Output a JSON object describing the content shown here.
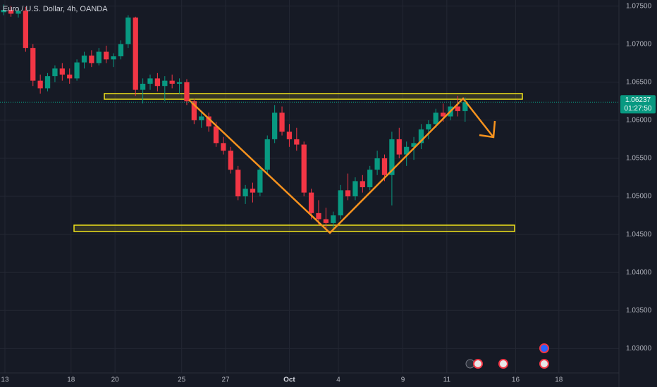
{
  "chart_data": {
    "type": "candlestick",
    "title": "Euro / U.S. Dollar, 4h, OANDA",
    "up_color": "#089981",
    "down_color": "#f23645",
    "last_price": {
      "value": 1.06237,
      "label": "1.06237"
    },
    "countdown": "01:27:50",
    "x": [
      0,
      1,
      2,
      3,
      4,
      5,
      6,
      7,
      8,
      9,
      10,
      11,
      12,
      13,
      14,
      15,
      16,
      17,
      18,
      19,
      20,
      21,
      22,
      23,
      24,
      25,
      26,
      27,
      28,
      29,
      30,
      31,
      32,
      33,
      34,
      35,
      36,
      37,
      38,
      39,
      40,
      41,
      42,
      43,
      44,
      45,
      46,
      47,
      48,
      49,
      50,
      51,
      52,
      53,
      54,
      55,
      56,
      57,
      58,
      59,
      60,
      61,
      62,
      63
    ],
    "candles": [
      [
        1.0742,
        1.0752,
        1.0738,
        1.0745
      ],
      [
        1.0745,
        1.075,
        1.0736,
        1.074
      ],
      [
        1.074,
        1.0748,
        1.0735,
        1.0744
      ],
      [
        1.0744,
        1.0749,
        1.069,
        1.0695
      ],
      [
        1.0695,
        1.07,
        1.0645,
        1.0652
      ],
      [
        1.0652,
        1.066,
        1.0635,
        1.0642
      ],
      [
        1.0642,
        1.0662,
        1.0638,
        1.0658
      ],
      [
        1.0658,
        1.0672,
        1.065,
        1.0668
      ],
      [
        1.0668,
        1.0675,
        1.0652,
        1.066
      ],
      [
        1.066,
        1.0668,
        1.0648,
        1.0655
      ],
      [
        1.0655,
        1.068,
        1.0652,
        1.0676
      ],
      [
        1.0676,
        1.069,
        1.0668,
        1.0685
      ],
      [
        1.0685,
        1.0692,
        1.067,
        1.0675
      ],
      [
        1.0675,
        1.0695,
        1.0672,
        1.069
      ],
      [
        1.069,
        1.0698,
        1.0675,
        1.068
      ],
      [
        1.068,
        1.0688,
        1.067,
        1.0684
      ],
      [
        1.0684,
        1.0705,
        1.068,
        1.07
      ],
      [
        1.07,
        1.0738,
        1.0695,
        1.0735
      ],
      [
        1.0735,
        1.0736,
        1.0632,
        1.064
      ],
      [
        1.064,
        1.0655,
        1.0622,
        1.0648
      ],
      [
        1.0648,
        1.066,
        1.064,
        1.0655
      ],
      [
        1.0655,
        1.0662,
        1.0638,
        1.0645
      ],
      [
        1.0645,
        1.0658,
        1.0625,
        1.0652
      ],
      [
        1.0652,
        1.066,
        1.0642,
        1.0648
      ],
      [
        1.0648,
        1.0655,
        1.0635,
        1.065
      ],
      [
        1.065,
        1.0654,
        1.062,
        1.0625
      ],
      [
        1.0625,
        1.0628,
        1.0595,
        1.06
      ],
      [
        1.06,
        1.0612,
        1.059,
        1.0605
      ],
      [
        1.0605,
        1.061,
        1.0585,
        1.0592
      ],
      [
        1.0592,
        1.0598,
        1.0565,
        1.057
      ],
      [
        1.057,
        1.0578,
        1.0555,
        1.056
      ],
      [
        1.056,
        1.0565,
        1.053,
        1.0535
      ],
      [
        1.0535,
        1.054,
        1.0495,
        1.05
      ],
      [
        1.05,
        1.0515,
        1.049,
        1.051
      ],
      [
        1.051,
        1.0518,
        1.0492,
        1.0505
      ],
      [
        1.0505,
        1.054,
        1.05,
        1.0535
      ],
      [
        1.0535,
        1.058,
        1.053,
        1.0575
      ],
      [
        1.0575,
        1.062,
        1.057,
        1.061
      ],
      [
        1.061,
        1.0618,
        1.058,
        1.0585
      ],
      [
        1.0585,
        1.0595,
        1.0565,
        1.0575
      ],
      [
        1.0575,
        1.059,
        1.056,
        1.0568
      ],
      [
        1.0568,
        1.0572,
        1.05,
        1.0505
      ],
      [
        1.0505,
        1.051,
        1.047,
        1.0478
      ],
      [
        1.0478,
        1.0495,
        1.0462,
        1.047
      ],
      [
        1.047,
        1.0485,
        1.0458,
        1.0465
      ],
      [
        1.0465,
        1.048,
        1.0455,
        1.0475
      ],
      [
        1.0475,
        1.0515,
        1.047,
        1.0508
      ],
      [
        1.0508,
        1.053,
        1.0495,
        1.05
      ],
      [
        1.05,
        1.0525,
        1.0495,
        1.052
      ],
      [
        1.052,
        1.0528,
        1.0505,
        1.0512
      ],
      [
        1.0512,
        1.054,
        1.0508,
        1.0535
      ],
      [
        1.0535,
        1.056,
        1.0528,
        1.055
      ],
      [
        1.055,
        1.0555,
        1.052,
        1.0528
      ],
      [
        1.0528,
        1.0585,
        1.0488,
        1.0575
      ],
      [
        1.0575,
        1.059,
        1.055,
        1.0555
      ],
      [
        1.0555,
        1.0572,
        1.054,
        1.0565
      ],
      [
        1.0565,
        1.0578,
        1.0548,
        1.057
      ],
      [
        1.057,
        1.0595,
        1.0562,
        1.0588
      ],
      [
        1.0588,
        1.06,
        1.0575,
        1.0595
      ],
      [
        1.0595,
        1.0615,
        1.059,
        1.061
      ],
      [
        1.061,
        1.0622,
        1.0598,
        1.0605
      ],
      [
        1.0605,
        1.0625,
        1.06,
        1.0618
      ],
      [
        1.0618,
        1.0632,
        1.0605,
        1.0612
      ],
      [
        1.0612,
        1.063,
        1.0598,
        1.06237
      ]
    ],
    "xlim": [
      -0.5,
      84
    ],
    "xticks": [
      {
        "value": 0.17,
        "label": "13"
      },
      {
        "value": 9.2,
        "label": "18"
      },
      {
        "value": 15.2,
        "label": "20"
      },
      {
        "value": 24.3,
        "label": "25"
      },
      {
        "value": 30.3,
        "label": "27"
      },
      {
        "value": 39.0,
        "label": "Oct"
      },
      {
        "value": 45.7,
        "label": "4"
      },
      {
        "value": 54.5,
        "label": "9"
      },
      {
        "value": 60.5,
        "label": "11"
      },
      {
        "value": 69.9,
        "label": "16"
      },
      {
        "value": 75.8,
        "label": "18"
      }
    ],
    "ylim": [
      1.0268,
      1.0758
    ],
    "yticks": [
      {
        "value": 1.075,
        "label": "1.07500"
      },
      {
        "value": 1.07,
        "label": "1.07000"
      },
      {
        "value": 1.065,
        "label": "1.06500"
      },
      {
        "value": 1.06,
        "label": "1.06000"
      },
      {
        "value": 1.055,
        "label": "1.05500"
      },
      {
        "value": 1.05,
        "label": "1.05000"
      },
      {
        "value": 1.045,
        "label": "1.04500"
      },
      {
        "value": 1.04,
        "label": "1.04000"
      },
      {
        "value": 1.035,
        "label": "1.03500"
      },
      {
        "value": 1.03,
        "label": "1.03000"
      }
    ],
    "grid": true
  }
}
